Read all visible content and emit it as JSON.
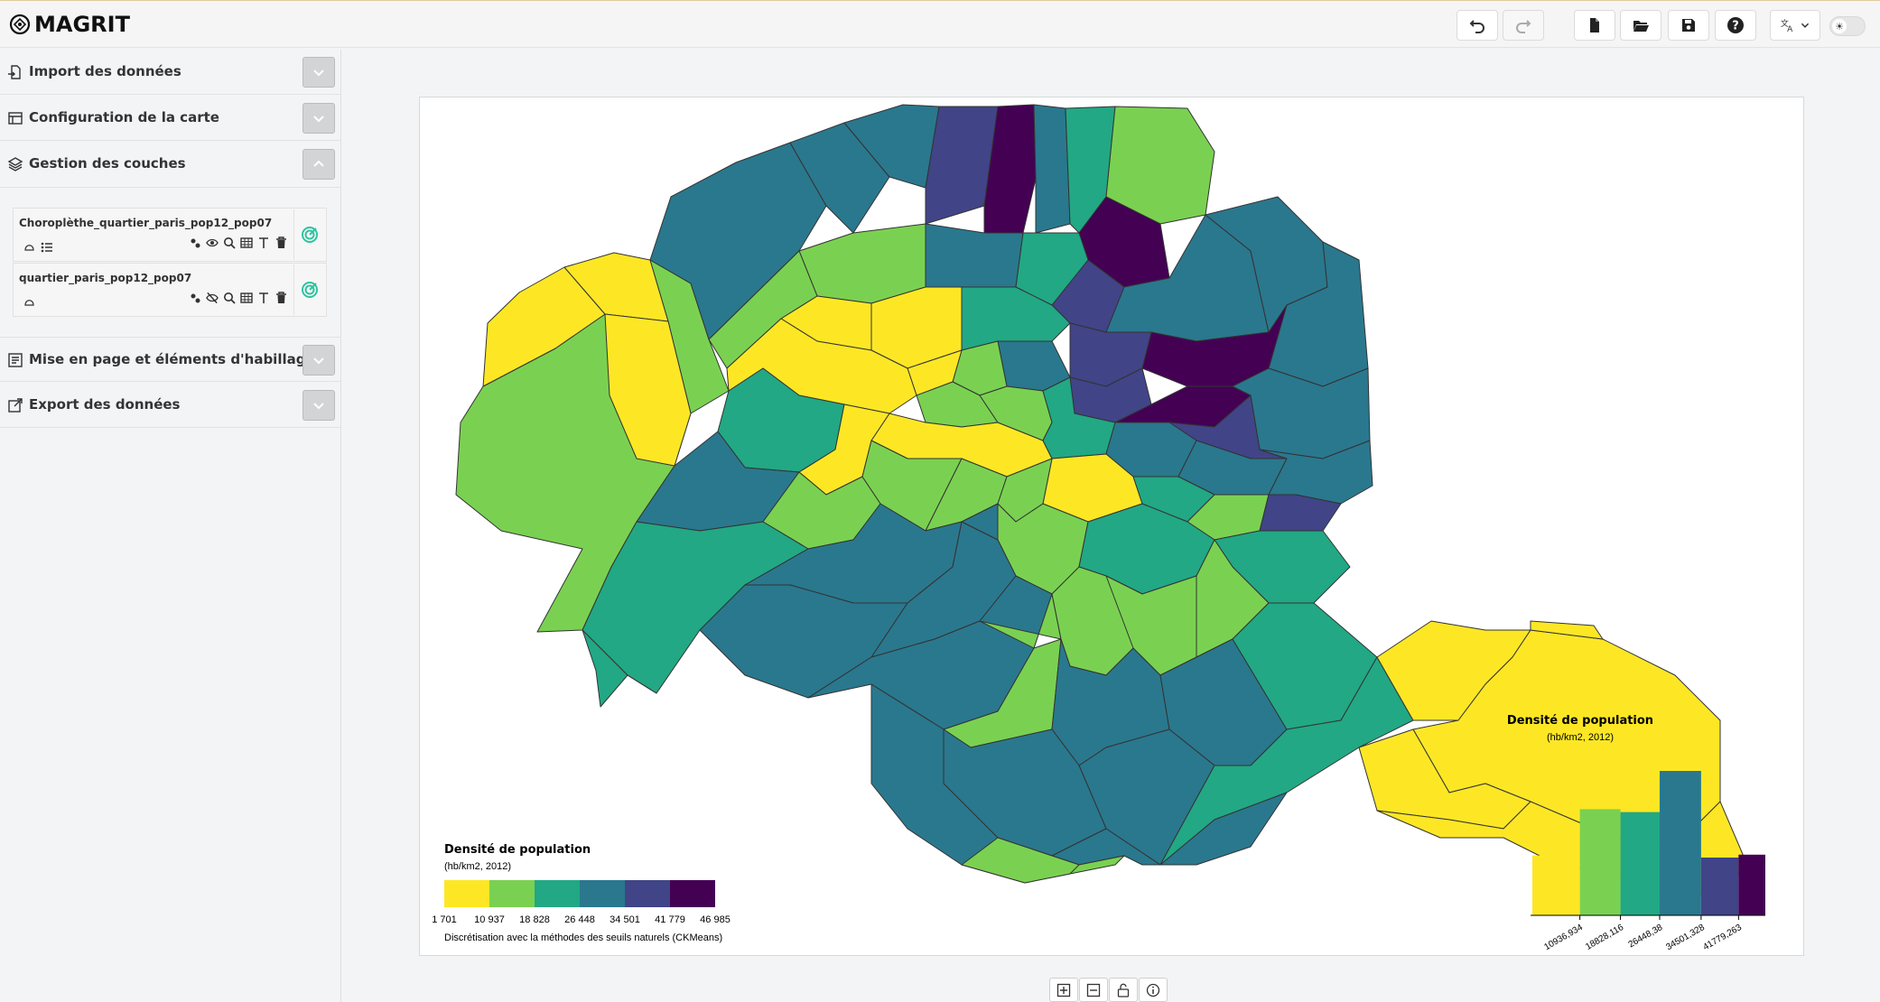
{
  "app": {
    "name": "MAGRIT"
  },
  "toolbar": {
    "buttons": [
      {
        "id": "undo",
        "icon": "undo-icon"
      },
      {
        "id": "redo",
        "icon": "redo-icon"
      },
      {
        "id": "new",
        "icon": "new-file-icon"
      },
      {
        "id": "open",
        "icon": "open-folder-icon"
      },
      {
        "id": "save",
        "icon": "save-icon"
      },
      {
        "id": "help",
        "icon": "help-icon"
      },
      {
        "id": "language",
        "icon": "translate-icon"
      }
    ]
  },
  "sidebar": {
    "sections": [
      {
        "title": "Import des données",
        "icon": "import-icon",
        "expanded": false
      },
      {
        "title": "Configuration de la carte",
        "icon": "map-config-icon",
        "expanded": false
      },
      {
        "title": "Gestion des couches",
        "icon": "layers-icon",
        "expanded": true
      },
      {
        "title": "Mise en page et éléments d'habillage",
        "icon": "layout-icon",
        "expanded": false
      },
      {
        "title": "Export des données",
        "icon": "export-icon",
        "expanded": false
      }
    ],
    "layers": [
      {
        "name": "Choroplèthe_quartier_paris_pop12_pop07",
        "visible": true
      },
      {
        "name": "quartier_paris_pop12_pop07",
        "visible": false
      }
    ]
  },
  "legend": {
    "title": "Densité de population",
    "subtitle": "(hb/km2, 2012)",
    "ticks": [
      "1 701",
      "10 937",
      "18 828",
      "26 448",
      "34 501",
      "41 779",
      "46 985"
    ],
    "note": "Discrétisation avec la méthodes des seuils naturels (CKMeans)"
  },
  "palette": [
    "#fde725",
    "#7ad151",
    "#22a884",
    "#2a788e",
    "#414487",
    "#440154"
  ],
  "histogram": {
    "title": "Densité de population",
    "subtitle": "(hb/km2, 2012)",
    "tick_labels": [
      "10936,934",
      "18828,116",
      "26448,38",
      "34501,328",
      "41779,263"
    ]
  },
  "chart_data": {
    "type": "bar",
    "title": "Densité de population",
    "subtitle": "(hb/km2, 2012)",
    "bins": [
      {
        "from": 1701,
        "to": 10936.934,
        "density": 0.83
      },
      {
        "from": 10936.934,
        "to": 18828.116,
        "density": 1.47
      },
      {
        "from": 18828.116,
        "to": 26448.38,
        "density": 1.43
      },
      {
        "from": 26448.38,
        "to": 34501.328,
        "density": 2.0
      },
      {
        "from": 34501.328,
        "to": 41779.263,
        "density": 0.8
      },
      {
        "from": 41779.263,
        "to": 46985,
        "density": 0.84
      }
    ]
  }
}
